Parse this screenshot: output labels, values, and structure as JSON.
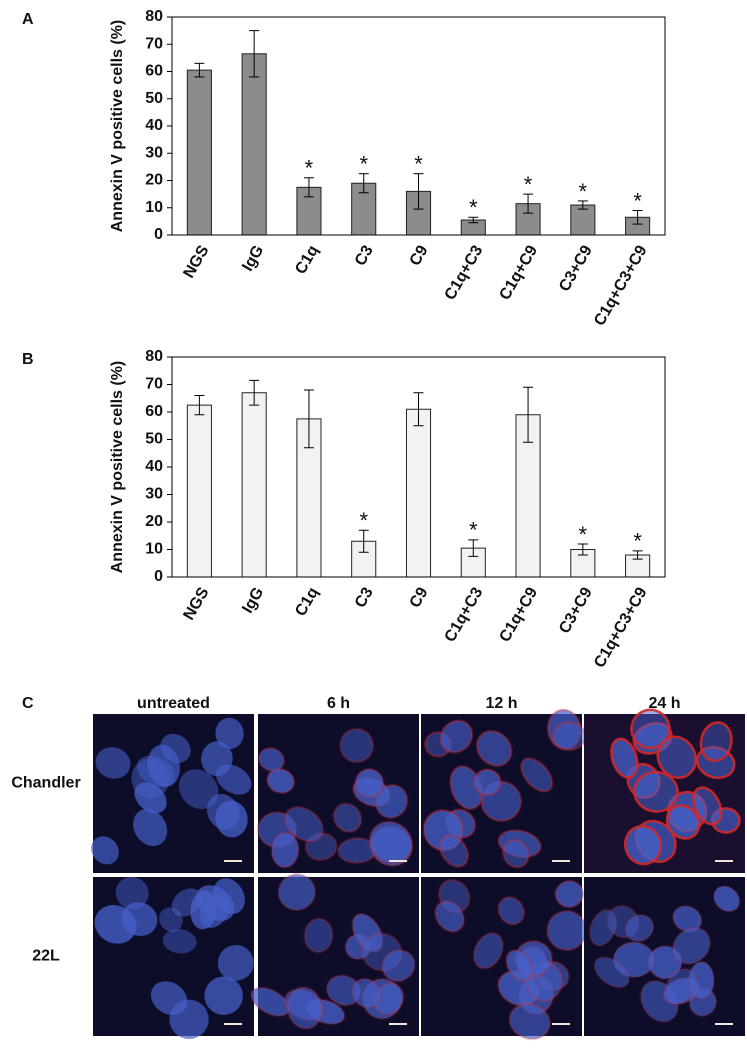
{
  "chart_data": [
    {
      "type": "bar",
      "panel_label": "A",
      "y_label": "Annexin V positive cells (%)",
      "categories": [
        "NGS",
        "IgG",
        "C1q",
        "C3",
        "C9",
        "C1q+C3",
        "C1q+C9",
        "C3+C9",
        "C1q+C3+C9"
      ],
      "values": [
        60.5,
        66.5,
        17.5,
        19,
        16,
        5.5,
        11.5,
        11,
        6.5
      ],
      "errors": [
        2.5,
        8.5,
        3.5,
        3.5,
        6.5,
        1,
        3.5,
        1.5,
        2.5
      ],
      "value_annotations": [
        null,
        null,
        "*",
        "*",
        "*",
        "*",
        "*",
        "*",
        "*"
      ],
      "color": "#8c8c8c",
      "ylim": [
        0,
        80
      ],
      "yticks": [
        0,
        10,
        20,
        30,
        40,
        50,
        60,
        70,
        80
      ]
    },
    {
      "type": "bar",
      "panel_label": "B",
      "y_label": "Annexin V positive cells (%)",
      "categories": [
        "NGS",
        "IgG",
        "C1q",
        "C3",
        "C9",
        "C1q+C3",
        "C1q+C9",
        "C3+C9",
        "C1q+C3+C9"
      ],
      "values": [
        62.5,
        67,
        57.5,
        13,
        61,
        10.5,
        59,
        10,
        8
      ],
      "errors": [
        3.5,
        4.5,
        10.5,
        4,
        6,
        3,
        10,
        2,
        1.5
      ],
      "value_annotations": [
        null,
        null,
        null,
        "*",
        null,
        "*",
        null,
        "*",
        "*"
      ],
      "color": "#f2f2f2",
      "ylim": [
        0,
        80
      ],
      "yticks": [
        0,
        10,
        20,
        30,
        40,
        50,
        60,
        70,
        80
      ]
    }
  ],
  "panel_c": {
    "panel_label": "C",
    "columns": [
      "untreated",
      "6 h",
      "12 h",
      "24 h"
    ],
    "rows": [
      "Chandler",
      "22L"
    ]
  }
}
